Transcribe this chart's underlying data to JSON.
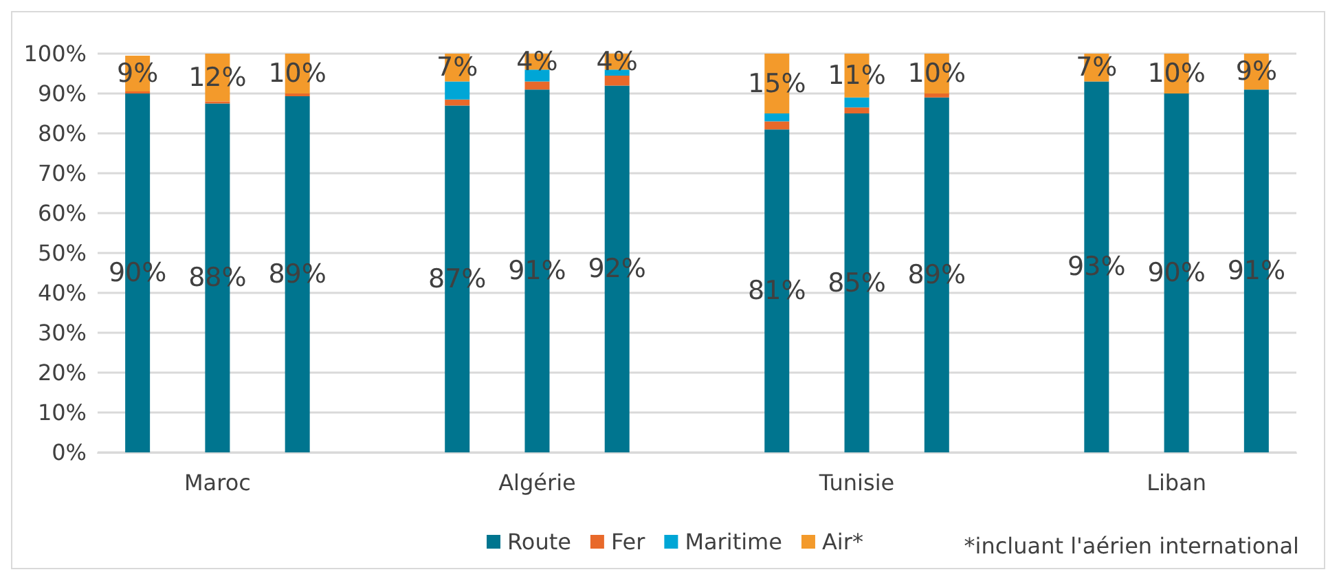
{
  "chart_data": {
    "type": "bar",
    "stacked": true,
    "categories": [
      null,
      "Maroc",
      null,
      null,
      null,
      "Algérie",
      null,
      null,
      null,
      "Tunisie",
      null,
      null,
      null,
      "Liban",
      null
    ],
    "series": [
      {
        "name": "Route",
        "color": "#00758f",
        "values": [
          90,
          87.5,
          89.3,
          null,
          87,
          91,
          92,
          null,
          81,
          85,
          89,
          null,
          93,
          90,
          91
        ],
        "value_labels": [
          "90%",
          "88%",
          "89%",
          null,
          "87%",
          "91%",
          "92%",
          null,
          "81%",
          "85%",
          "89%",
          null,
          "93%",
          "90%",
          "91%"
        ]
      },
      {
        "name": "Fer",
        "color": "#e8692a",
        "values": [
          0.5,
          0.5,
          0.7,
          null,
          1.5,
          2,
          2.5,
          null,
          2,
          1.5,
          1,
          null,
          0,
          0,
          0
        ]
      },
      {
        "name": "Maritime",
        "color": "#00a6d6",
        "values": [
          0,
          0,
          0,
          null,
          4.5,
          3,
          1.5,
          null,
          2,
          2.5,
          0,
          null,
          0,
          0,
          0
        ]
      },
      {
        "name": "Air*",
        "color": "#f39a2b",
        "values": [
          9,
          12,
          10,
          null,
          7,
          4,
          4,
          null,
          15,
          11,
          10,
          null,
          7,
          10,
          9
        ],
        "value_labels": [
          "9%",
          "12%",
          "10%",
          null,
          "7%",
          "4%",
          "4%",
          null,
          "15%",
          "11%",
          "10%",
          null,
          "7%",
          "10%",
          "9%"
        ]
      }
    ],
    "ylim": [
      0,
      100
    ],
    "yticks": [
      {
        "value": 0,
        "label": "0%"
      },
      {
        "value": 10,
        "label": "10%"
      },
      {
        "value": 20,
        "label": "20%"
      },
      {
        "value": 30,
        "label": "30%"
      },
      {
        "value": 40,
        "label": "40%"
      },
      {
        "value": 50,
        "label": "50%"
      },
      {
        "value": 60,
        "label": "60%"
      },
      {
        "value": 70,
        "label": "70%"
      },
      {
        "value": 80,
        "label": "80%"
      },
      {
        "value": 90,
        "label": "90%"
      },
      {
        "value": 100,
        "label": "100%"
      }
    ],
    "grid": "y",
    "legend": "bottom",
    "annotations": [
      "*incluant l'aérien international"
    ]
  }
}
